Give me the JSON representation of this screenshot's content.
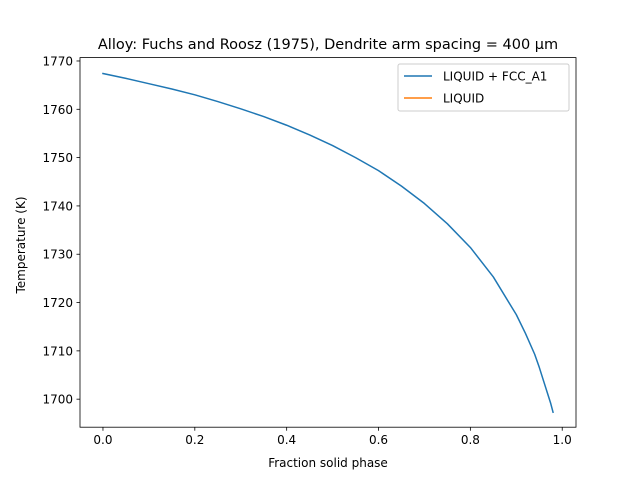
{
  "chart_data": {
    "type": "line",
    "title": "Alloy: Fuchs and Roosz (1975), Dendrite arm spacing = 400 µm",
    "xlabel": "Fraction solid phase",
    "ylabel": "Temperature (K)",
    "xlim": [
      -0.05,
      1.03
    ],
    "ylim": [
      1694.2,
      1770.7
    ],
    "xticks": [
      0.0,
      0.2,
      0.4,
      0.6,
      0.8,
      1.0
    ],
    "xtick_labels": [
      "0.0",
      "0.2",
      "0.4",
      "0.6",
      "0.8",
      "1.0"
    ],
    "yticks": [
      1700,
      1710,
      1720,
      1730,
      1740,
      1750,
      1760,
      1770
    ],
    "ytick_labels": [
      "1700",
      "1710",
      "1720",
      "1730",
      "1740",
      "1750",
      "1760",
      "1770"
    ],
    "grid": false,
    "legend_position": "top-right",
    "series": [
      {
        "name": "LIQUID + FCC_A1",
        "color": "#1f77b4",
        "x": [
          0.0,
          0.05,
          0.1,
          0.15,
          0.2,
          0.25,
          0.3,
          0.35,
          0.4,
          0.45,
          0.5,
          0.55,
          0.6,
          0.65,
          0.7,
          0.75,
          0.8,
          0.85,
          0.9,
          0.92,
          0.94,
          0.95,
          0.96,
          0.97,
          0.975,
          0.98
        ],
        "y": [
          1767.4,
          1766.4,
          1765.3,
          1764.2,
          1763.0,
          1761.6,
          1760.1,
          1758.5,
          1756.7,
          1754.7,
          1752.5,
          1750.0,
          1747.3,
          1744.1,
          1740.5,
          1736.3,
          1731.4,
          1725.3,
          1717.5,
          1713.6,
          1709.3,
          1706.6,
          1703.6,
          1700.6,
          1699.1,
          1697.3
        ]
      },
      {
        "name": "LIQUID",
        "color": "#ff7f0e",
        "x": [],
        "y": []
      }
    ]
  }
}
